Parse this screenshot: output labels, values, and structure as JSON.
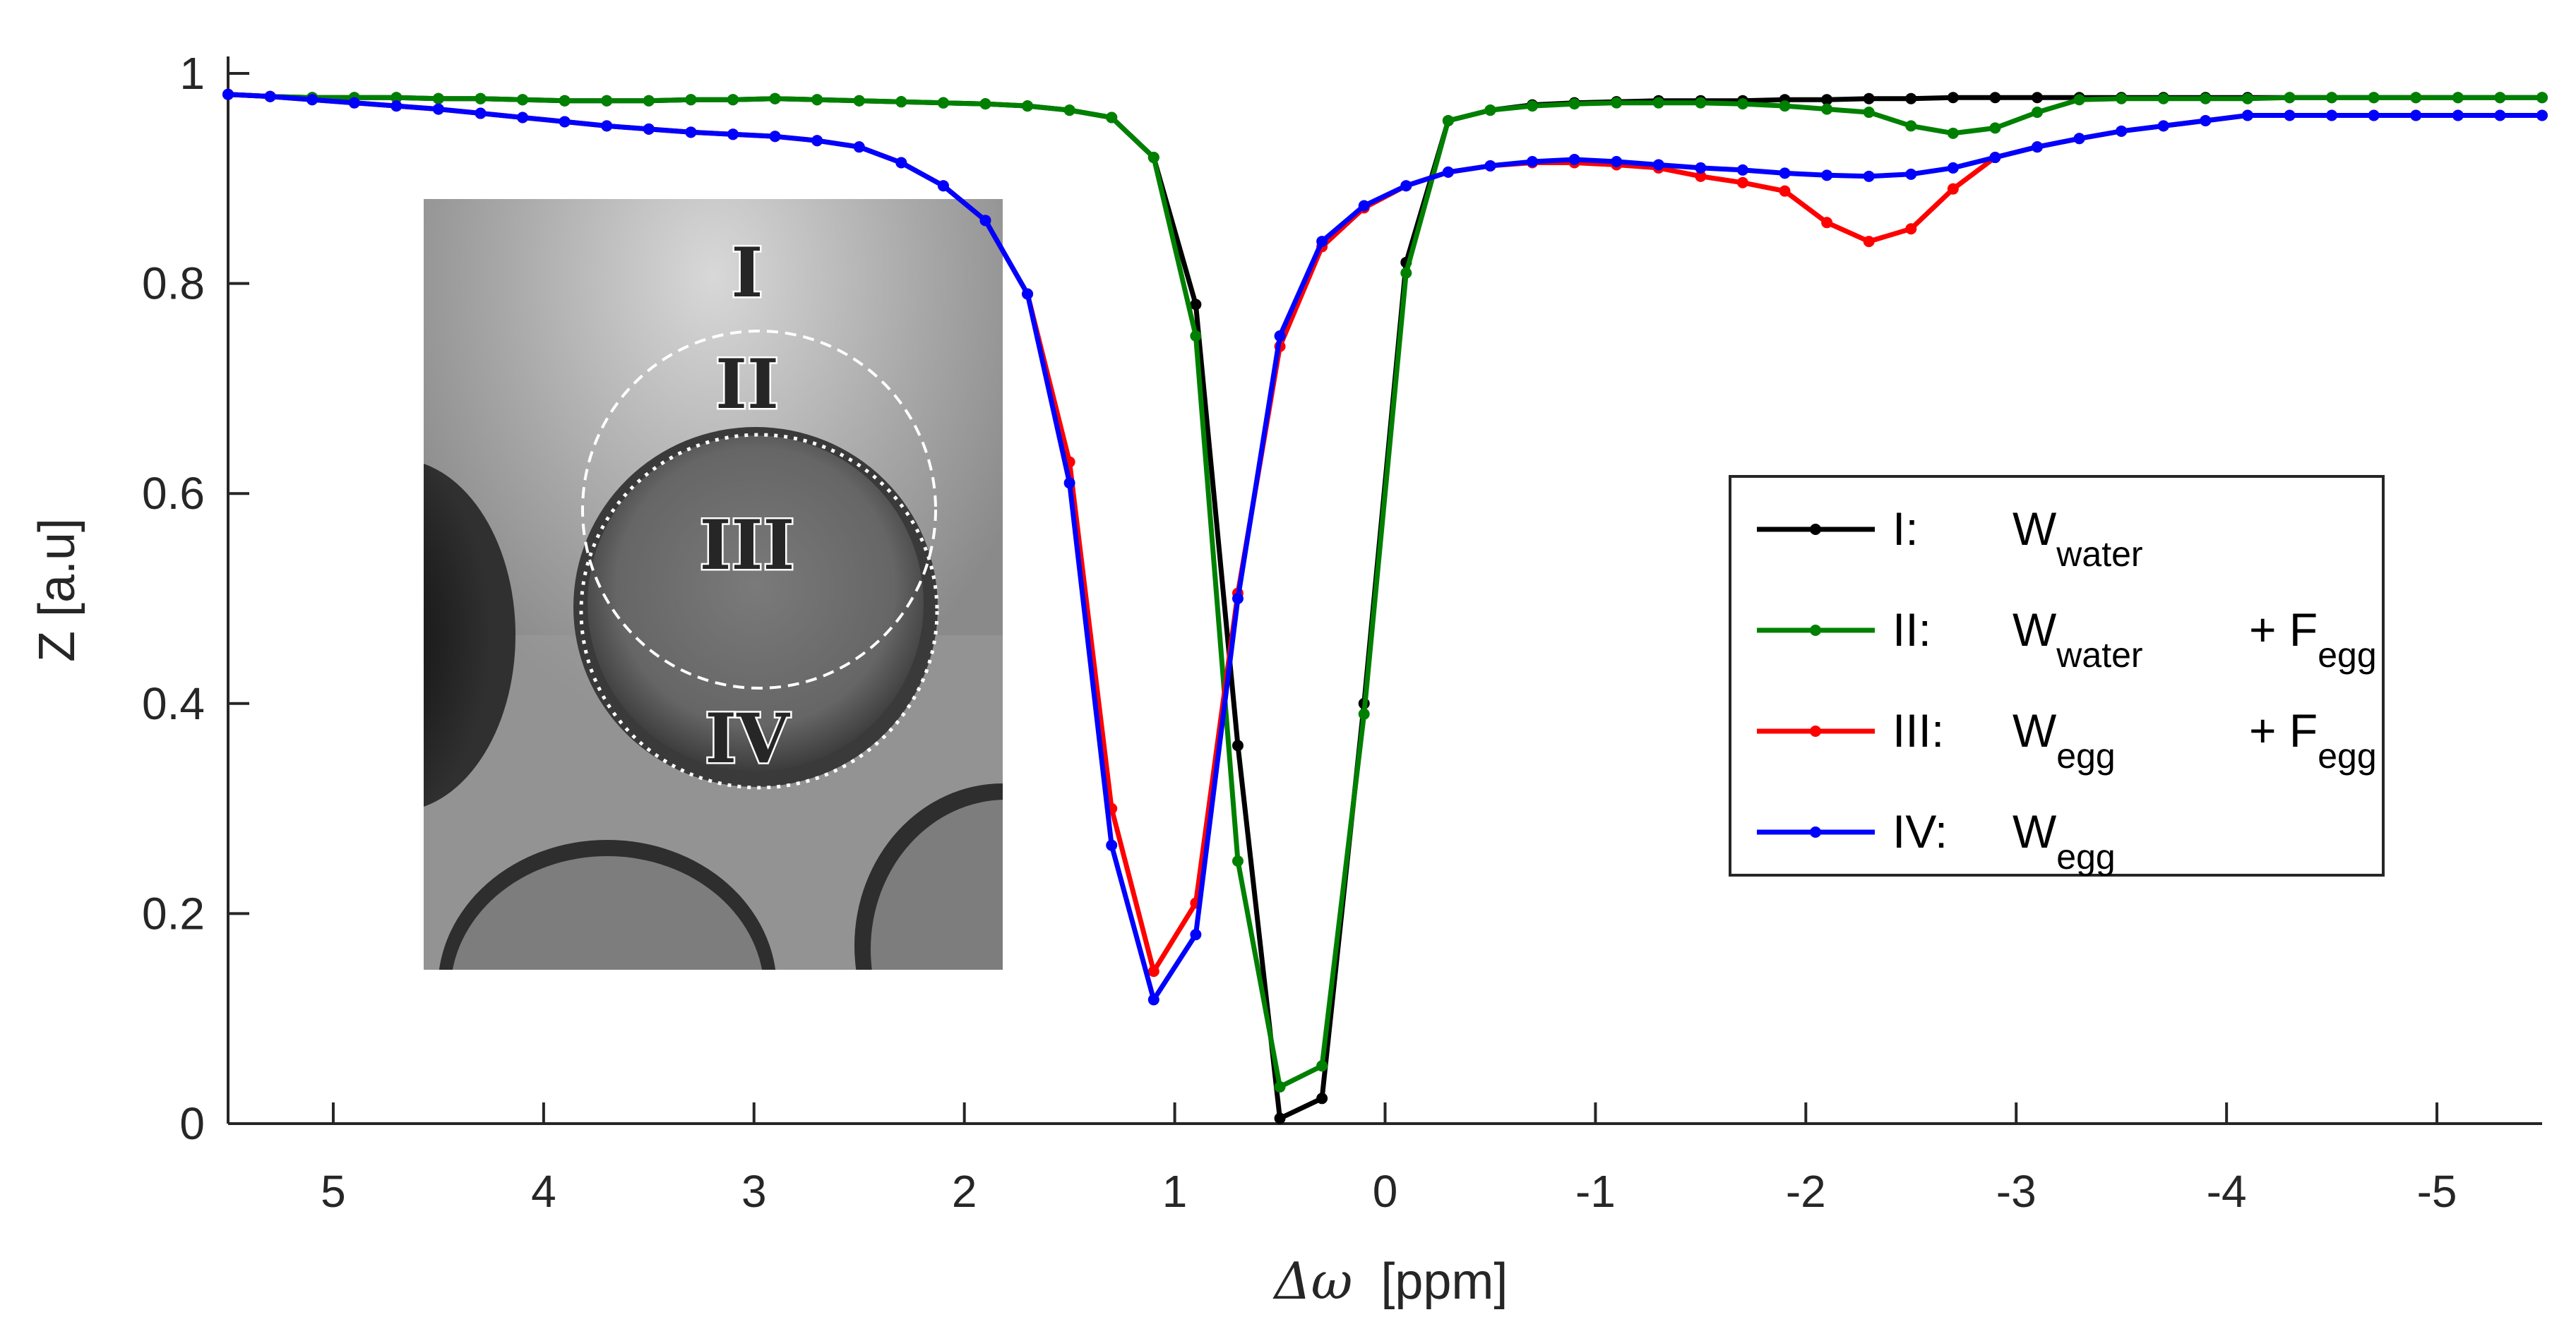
{
  "chart_data": {
    "type": "line",
    "xlabel_symbol": "Δω",
    "xlabel_unit": "[ppm]",
    "ylabel": "Z [a.u]",
    "xlim": [
      5.5,
      -5.5
    ],
    "ylim": [
      0,
      1
    ],
    "x_reversed": true,
    "x_ticks": [
      5,
      4,
      3,
      2,
      1,
      0,
      -1,
      -2,
      -3,
      -4,
      -5
    ],
    "x_tick_labels": [
      "5",
      "4",
      "3",
      "2",
      "1",
      "0",
      "-1",
      "-2",
      "-3",
      "-4",
      "-5"
    ],
    "y_ticks": [
      0,
      0.2,
      0.4,
      0.6,
      0.8,
      1
    ],
    "y_tick_labels": [
      "0",
      "0.2",
      "0.4",
      "0.6",
      "0.8",
      "1"
    ],
    "grid": false,
    "legend_position": "right",
    "x": [
      5.5,
      5.3,
      5.1,
      4.9,
      4.7,
      4.5,
      4.3,
      4.1,
      3.9,
      3.7,
      3.5,
      3.3,
      3.1,
      2.9,
      2.7,
      2.5,
      2.3,
      2.1,
      1.9,
      1.7,
      1.5,
      1.3,
      1.1,
      0.9,
      0.7,
      0.5,
      0.3,
      0.1,
      -0.1,
      -0.3,
      -0.5,
      -0.7,
      -0.9,
      -1.1,
      -1.3,
      -1.5,
      -1.7,
      -1.9,
      -2.1,
      -2.3,
      -2.5,
      -2.7,
      -2.9,
      -3.1,
      -3.3,
      -3.5,
      -3.7,
      -3.9,
      -4.1,
      -4.3,
      -4.5,
      -4.7,
      -4.9,
      -5.1,
      -5.3,
      -5.5
    ],
    "series": [
      {
        "label_roman": "I:",
        "label_main": "W",
        "label_sub": "water",
        "label_plus": "",
        "label_main2": "",
        "label_sub2": "",
        "color": "#000000",
        "values": [
          0.98,
          0.978,
          0.977,
          0.977,
          0.977,
          0.976,
          0.976,
          0.975,
          0.974,
          0.974,
          0.974,
          0.975,
          0.975,
          0.976,
          0.975,
          0.974,
          0.973,
          0.972,
          0.971,
          0.969,
          0.965,
          0.958,
          0.92,
          0.78,
          0.36,
          0.005,
          0.024,
          0.4,
          0.82,
          0.955,
          0.965,
          0.97,
          0.972,
          0.973,
          0.974,
          0.974,
          0.974,
          0.975,
          0.975,
          0.976,
          0.976,
          0.977,
          0.977,
          0.977,
          0.977,
          0.977,
          0.977,
          0.977,
          0.977,
          0.977,
          0.977,
          0.977,
          0.977,
          0.977,
          0.977,
          0.977
        ]
      },
      {
        "label_roman": "II:",
        "label_main": "W",
        "label_sub": "water",
        "label_plus": "+ F",
        "label_main2": "",
        "label_sub2": "egg",
        "color": "#008000",
        "values": [
          0.98,
          0.978,
          0.977,
          0.977,
          0.977,
          0.976,
          0.976,
          0.975,
          0.974,
          0.974,
          0.974,
          0.975,
          0.975,
          0.976,
          0.975,
          0.974,
          0.973,
          0.972,
          0.971,
          0.969,
          0.965,
          0.958,
          0.92,
          0.75,
          0.25,
          0.035,
          0.055,
          0.39,
          0.81,
          0.955,
          0.965,
          0.969,
          0.971,
          0.972,
          0.972,
          0.972,
          0.971,
          0.969,
          0.966,
          0.963,
          0.95,
          0.943,
          0.948,
          0.963,
          0.975,
          0.976,
          0.976,
          0.976,
          0.976,
          0.977,
          0.977,
          0.977,
          0.977,
          0.977,
          0.977,
          0.977
        ]
      },
      {
        "label_roman": "III:",
        "label_main": "W",
        "label_sub": "egg",
        "label_plus": "+ F",
        "label_main2": "",
        "label_sub2": "egg",
        "color": "#ff0000",
        "values": [
          0.98,
          0.978,
          0.975,
          0.972,
          0.969,
          0.966,
          0.962,
          0.958,
          0.954,
          0.95,
          0.947,
          0.944,
          0.942,
          0.94,
          0.936,
          0.93,
          0.915,
          0.893,
          0.86,
          0.79,
          0.63,
          0.3,
          0.145,
          0.21,
          0.505,
          0.74,
          0.835,
          0.872,
          0.893,
          0.906,
          0.912,
          0.915,
          0.915,
          0.913,
          0.91,
          0.902,
          0.896,
          0.888,
          0.858,
          0.84,
          0.852,
          0.89,
          0.92,
          0.93,
          0.938,
          0.945,
          0.95,
          0.955,
          0.96,
          0.96,
          0.96,
          0.96,
          0.96,
          0.96,
          0.96,
          0.96
        ]
      },
      {
        "label_roman": "IV:",
        "label_main": "W",
        "label_sub": "egg",
        "label_plus": "",
        "label_main2": "",
        "label_sub2": "",
        "color": "#0000ff",
        "values": [
          0.98,
          0.978,
          0.975,
          0.972,
          0.969,
          0.966,
          0.962,
          0.958,
          0.954,
          0.95,
          0.947,
          0.944,
          0.942,
          0.94,
          0.936,
          0.93,
          0.915,
          0.893,
          0.86,
          0.79,
          0.61,
          0.265,
          0.118,
          0.18,
          0.5,
          0.75,
          0.84,
          0.874,
          0.893,
          0.906,
          0.912,
          0.916,
          0.918,
          0.916,
          0.913,
          0.91,
          0.908,
          0.905,
          0.903,
          0.902,
          0.904,
          0.91,
          0.92,
          0.93,
          0.938,
          0.945,
          0.95,
          0.955,
          0.96,
          0.96,
          0.96,
          0.96,
          0.96,
          0.96,
          0.96,
          0.96
        ]
      }
    ],
    "inset": {
      "region_labels": [
        {
          "text": "I",
          "color": "#000000"
        },
        {
          "text": "II",
          "color": "#008000"
        },
        {
          "text": "III",
          "color": "#ff0000"
        },
        {
          "text": "IV",
          "color": "#0000ff"
        }
      ]
    }
  }
}
